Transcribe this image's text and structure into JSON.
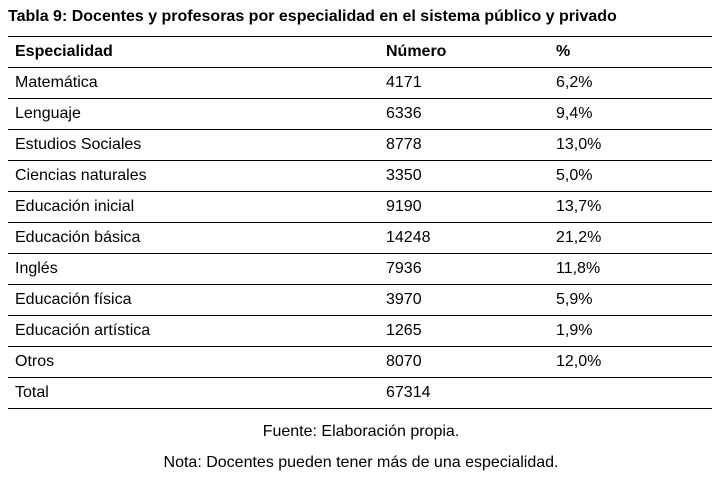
{
  "caption": "Tabla 9: Docentes y profesoras por especialidad en el sistema público y privado",
  "table": {
    "headers": [
      "Especialidad",
      "Número",
      "%"
    ],
    "rows": [
      [
        "Matemática",
        "4171",
        "6,2%"
      ],
      [
        "Lenguaje",
        "6336",
        "9,4%"
      ],
      [
        "Estudios Sociales",
        "8778",
        "13,0%"
      ],
      [
        "Ciencias naturales",
        "3350",
        "5,0%"
      ],
      [
        "Educación inicial",
        "9190",
        "13,7%"
      ],
      [
        "Educación básica",
        "14248",
        "21,2%"
      ],
      [
        "Inglés",
        "7936",
        "11,8%"
      ],
      [
        "Educación física",
        "3970",
        "5,9%"
      ],
      [
        "Educación artística",
        "1265",
        "1,9%"
      ],
      [
        "Otros",
        "8070",
        "12,0%"
      ]
    ],
    "total": [
      "Total",
      "67314",
      ""
    ]
  },
  "source_note": "Fuente: Elaboración propia.",
  "footnote": "Nota: Docentes pueden tener más de una especialidad."
}
